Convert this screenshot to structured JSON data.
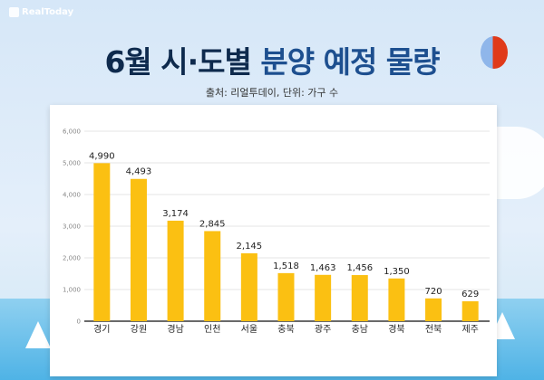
{
  "brand": "RealToday",
  "title_part1": "6월 시·도별",
  "title_part2": "분양 예정 물량",
  "subtitle": "출처: 리얼투데이, 단위: 가구 수",
  "colors": {
    "bar": "#fbc012",
    "title_dark": "#0e2a4d",
    "title_blue": "#1d4f8f"
  },
  "chart_data": {
    "type": "bar",
    "title": "6월 시·도별 분양 예정 물량",
    "categories": [
      "경기",
      "강원",
      "경남",
      "인천",
      "서울",
      "충북",
      "광주",
      "충남",
      "경북",
      "전북",
      "제주"
    ],
    "values": [
      4990,
      4493,
      3174,
      2845,
      2145,
      1518,
      1463,
      1456,
      1350,
      720,
      629
    ],
    "value_labels": [
      "4,990",
      "4,493",
      "3,174",
      "2,845",
      "2,145",
      "1,518",
      "1,463",
      "1,456",
      "1,350",
      "720",
      "629"
    ],
    "yticks": [
      "0",
      "1,000",
      "2,000",
      "3,000",
      "4,000",
      "5,000",
      "6,000"
    ],
    "ylim": [
      0,
      6000
    ],
    "grid": true
  }
}
